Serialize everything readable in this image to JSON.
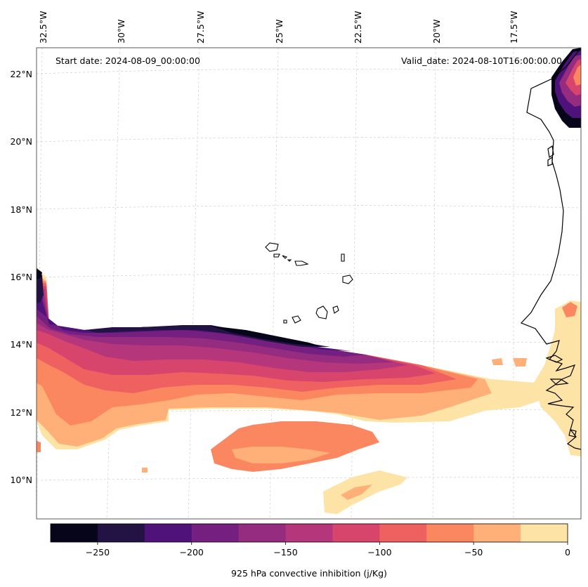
{
  "map": {
    "start_date": "Start date: 2024-08-09_00:00:00",
    "valid_date": "Valid_date: 2024-08-10T16:00:00.00",
    "lon_labels": [
      "32.5°W",
      "30°W",
      "27.5°W",
      "25°W",
      "22.5°W",
      "20°W",
      "17.5°W"
    ],
    "lat_labels": [
      "22°N",
      "20°N",
      "18°N",
      "16°N",
      "14°N",
      "12°N",
      "10°N"
    ],
    "colorbar_title": "925 hPa convective inhibition (j/Kg)"
  },
  "chart_data": {
    "type": "heatmap",
    "title": "925 hPa convective inhibition (j/Kg)",
    "variable": "925 hPa convective inhibition",
    "units": "j/Kg",
    "levels": [
      -275,
      -250,
      -225,
      -200,
      -175,
      -150,
      -125,
      -100,
      -75,
      -50,
      -25,
      0
    ],
    "level_colors": [
      "#06051a",
      "#221344",
      "#4f127b",
      "#751f80",
      "#952c80",
      "#b5367a",
      "#d7456d",
      "#ef6060",
      "#fb8761",
      "#feb078",
      "#fde4a6"
    ],
    "tick_values": [
      -250,
      -200,
      -150,
      -100,
      -50,
      0
    ],
    "tick_labels": [
      "−250",
      "−200",
      "−150",
      "−100",
      "−50",
      "0"
    ],
    "lon_range": [
      "33°W",
      "16°W"
    ],
    "lat_range": [
      "9°N",
      "22.5°N"
    ],
    "gridlines": true
  }
}
